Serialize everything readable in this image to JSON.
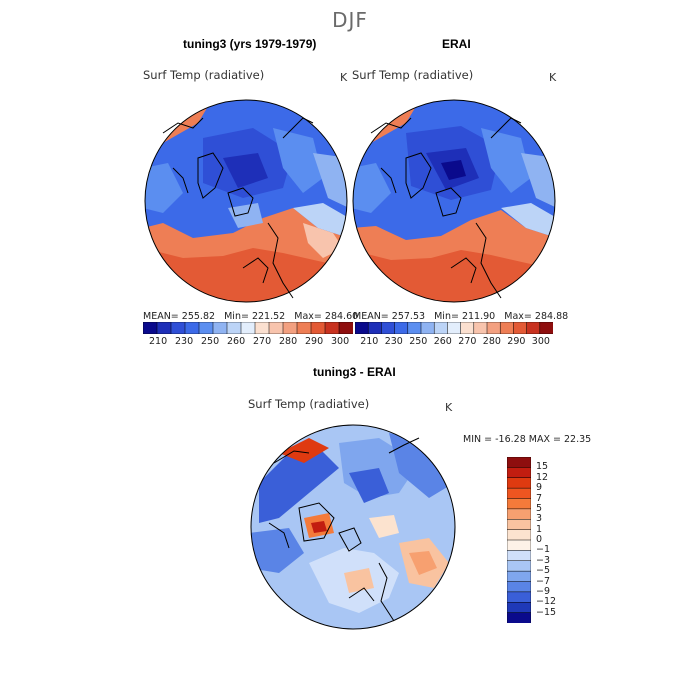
{
  "season": "DJF",
  "colors": {
    "cold_deep": "#0a0a8c",
    "cold": "#2f62e0",
    "cold_light": "#8fb3f2",
    "neutral": "#d6e6fb",
    "warm_light": "#f8d2bf",
    "warm": "#ee7e55",
    "warm_deep": "#b8241a"
  },
  "chart_data": [
    {
      "type": "heatmap",
      "projection": "north-polar-stereographic",
      "title": "tuning3 (yrs 1979-1979)",
      "variable": "Surf Temp (radiative)",
      "units": "K",
      "stats": {
        "mean_label": "MEAN=",
        "mean": "255.82",
        "min_label": "Min=",
        "min": "221.52",
        "max_label": "Max=",
        "max": "284.60"
      },
      "colorbar": {
        "orientation": "horizontal",
        "tick_labels": [
          "210",
          "230",
          "250",
          "260",
          "270",
          "280",
          "290",
          "300"
        ],
        "colors": [
          "#0a0a8c",
          "#1e2fb8",
          "#2f4fd6",
          "#3c6ae8",
          "#5b8ef0",
          "#8fb3f2",
          "#bcd4f7",
          "#e3eefc",
          "#fbe0d0",
          "#f8c4ad",
          "#f3a080",
          "#ee7e55",
          "#e35a35",
          "#c8321f",
          "#8e0e0e"
        ]
      }
    },
    {
      "type": "heatmap",
      "projection": "north-polar-stereographic",
      "title": "ERAI",
      "variable": "Surf Temp (radiative)",
      "units": "K",
      "stats": {
        "mean_label": "MEAN=",
        "mean": "257.53",
        "min_label": "Min=",
        "min": "211.90",
        "max_label": "Max=",
        "max": "284.88"
      },
      "colorbar": {
        "orientation": "horizontal",
        "tick_labels": [
          "210",
          "230",
          "250",
          "260",
          "270",
          "280",
          "290",
          "300"
        ],
        "colors": [
          "#0a0a8c",
          "#1e2fb8",
          "#2f4fd6",
          "#3c6ae8",
          "#5b8ef0",
          "#8fb3f2",
          "#bcd4f7",
          "#e3eefc",
          "#fbe0d0",
          "#f8c4ad",
          "#f3a080",
          "#ee7e55",
          "#e35a35",
          "#c8321f",
          "#8e0e0e"
        ]
      }
    },
    {
      "type": "heatmap",
      "projection": "north-polar-stereographic",
      "title": "tuning3 - ERAI",
      "variable": "Surf Temp (radiative)",
      "units": "K",
      "stats": {
        "min_label": "MIN =",
        "min": "-16.28",
        "max_label": "MAX =",
        "max": "22.35"
      },
      "colorbar": {
        "orientation": "vertical",
        "tick_labels": [
          "15",
          "12",
          "9",
          "7",
          "5",
          "3",
          "1",
          "0",
          "−1",
          "−3",
          "−5",
          "−7",
          "−9",
          "−12",
          "−15"
        ],
        "colors": [
          "#8e0e0e",
          "#c21d10",
          "#df3a10",
          "#ee5520",
          "#f47a3a",
          "#f7a070",
          "#f9c3a0",
          "#fce3cf",
          "#fdf2e8",
          "#d0e0fa",
          "#a9c6f4",
          "#7fa6ee",
          "#5a84e6",
          "#3a5fd8",
          "#1f39b8",
          "#0a0a8c"
        ]
      }
    }
  ]
}
